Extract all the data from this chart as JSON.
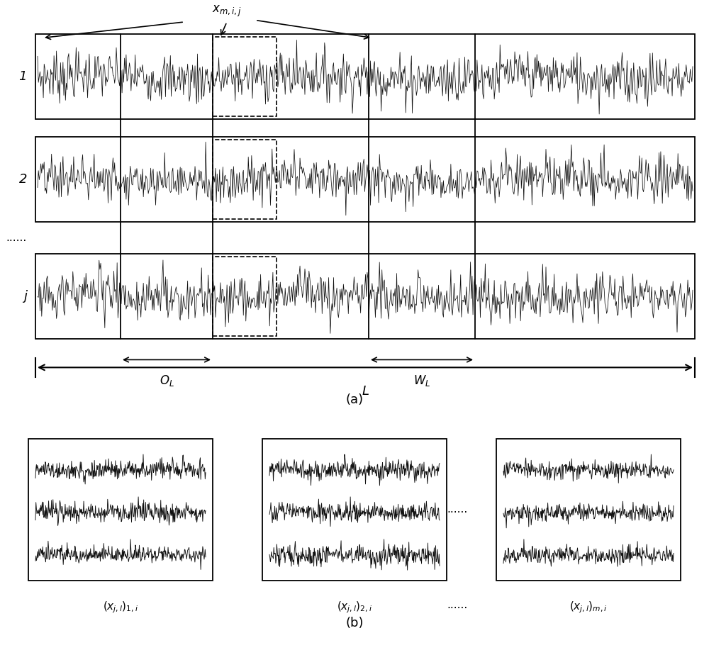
{
  "title_a": "(a)",
  "title_b": "(b)",
  "label_1": "1",
  "label_2": "2",
  "label_dots": "......",
  "label_j": "j",
  "label_OL": "$O_L$",
  "label_WL": "$W_L$",
  "label_L": "$L$",
  "label_xmij": "$x_{m,i,j}$",
  "label_b1": "$(x_{j,l})_{1,i}$",
  "label_b2": "$(x_{j,l})_{2,i}$",
  "label_bm": "$(x_{j,l})_{m,i}$",
  "label_bdots": "......",
  "bg_color": "#ffffff",
  "signal_color": "#111111",
  "line_color": "#000000",
  "seed": 42,
  "fig_width": 10.0,
  "fig_height": 9.24,
  "dpi": 100
}
